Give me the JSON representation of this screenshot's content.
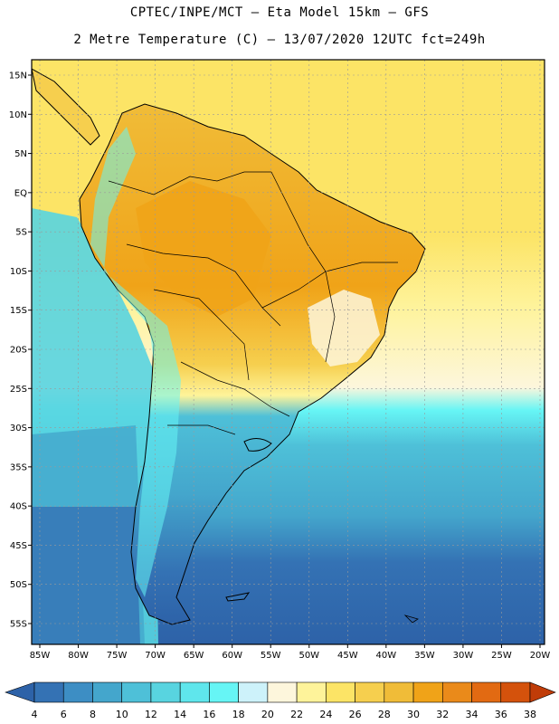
{
  "header": {
    "line1": "CPTEC/INPE/MCT –  Eta Model 15km – GFS",
    "line2": "2 Metre Temperature (C) – 13/07/2020 12UTC fct=249h"
  },
  "map": {
    "lat_labels": [
      "15N",
      "10N",
      "5N",
      "EQ",
      "5S",
      "10S",
      "15S",
      "20S",
      "25S",
      "30S",
      "35S",
      "40S",
      "45S",
      "50S",
      "55S"
    ],
    "lon_labels": [
      "85W",
      "80W",
      "75W",
      "70W",
      "65W",
      "60W",
      "55W",
      "50W",
      "45W",
      "40W",
      "35W",
      "30W",
      "25W",
      "20W"
    ],
    "lat_values": [
      15,
      10,
      5,
      0,
      -5,
      -10,
      -15,
      -20,
      -25,
      -30,
      -35,
      -40,
      -45,
      -50,
      -55
    ],
    "lon_values": [
      -85,
      -80,
      -75,
      -70,
      -65,
      -60,
      -55,
      -50,
      -45,
      -40,
      -35,
      -30,
      -25,
      -20
    ]
  },
  "colorbar": {
    "labels": [
      "4",
      "6",
      "8",
      "10",
      "12",
      "14",
      "16",
      "18",
      "20",
      "22",
      "24",
      "26",
      "28",
      "30",
      "32",
      "34",
      "36",
      "38"
    ],
    "colors": [
      "#2d62a8",
      "#3472b4",
      "#3d8ec4",
      "#44a6cc",
      "#4ec0d8",
      "#58d4e0",
      "#5fe6ec",
      "#66f5f5",
      "#cdf2fa",
      "#fdf6dc",
      "#fef39a",
      "#fce466",
      "#f6cf4e",
      "#f0bc38",
      "#f0a318",
      "#ea8a1a",
      "#e26a12",
      "#d4520c",
      "#c03c08"
    ]
  }
}
